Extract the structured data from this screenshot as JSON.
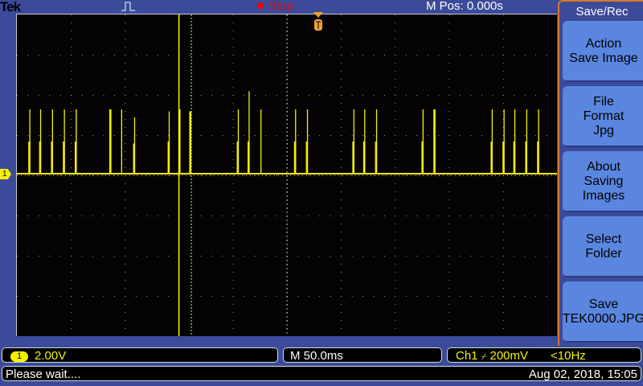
{
  "header": {
    "brand": "Tek",
    "acq_state": "Stop",
    "m_pos": "M Pos: 0.000s",
    "status_color": "#dd1111"
  },
  "side_menu": {
    "title": "Save/Rec",
    "buttons": [
      {
        "label": "Action\nSave Image"
      },
      {
        "label": "File\nFormat\nJpg"
      },
      {
        "label": "About\nSaving\nImages"
      },
      {
        "label": "Select\nFolder"
      },
      {
        "label": "Save\nTEK0000.JPG"
      }
    ]
  },
  "channel": {
    "number": "1",
    "scale": "2.00V",
    "color": "#f4f000"
  },
  "timebase": {
    "scale": "M 50.0ms"
  },
  "trigger": {
    "source": "Ch1",
    "slope": "⌿",
    "level": "200mV",
    "freq": "<10Hz"
  },
  "status": {
    "message": "Please wait....",
    "datetime": "Aug 02, 2018, 15:05"
  },
  "waveform": {
    "time_per_div_ms": 50,
    "volts_per_div": 2,
    "baseline_v": 0,
    "cursor_time_ms": -100,
    "spikes": [
      {
        "t": -238,
        "v": 3.2,
        "v2": 1.6
      },
      {
        "t": -228,
        "v": 3.2,
        "v2": 1.6
      },
      {
        "t": -217,
        "v": 3.2,
        "v2": 1.6
      },
      {
        "t": -206,
        "v": 3.2,
        "v2": 1.6
      },
      {
        "t": -195,
        "v": 3.2,
        "v2": 1.6
      },
      {
        "t": -163,
        "v": 3.2,
        "v2": 3.2
      },
      {
        "t": -153,
        "v": 3.2,
        "v2": 0
      },
      {
        "t": -141,
        "v": 2.8,
        "v2": 1.5
      },
      {
        "t": -109,
        "v": 3.1,
        "v2": 1.6
      },
      {
        "t": -99,
        "v": 3.2,
        "v2": 3.2
      },
      {
        "t": -89,
        "v": 3.1,
        "v2": 3.1
      },
      {
        "t": -45,
        "v": 3.2,
        "v2": 1.6
      },
      {
        "t": -35,
        "v": 4.1,
        "v2": 1.6
      },
      {
        "t": -24,
        "v": 3.2,
        "v2": 0
      },
      {
        "t": 8,
        "v": 3.2,
        "v2": 1.6
      },
      {
        "t": 19,
        "v": 3.2,
        "v2": 1.6
      },
      {
        "t": 62,
        "v": 3.2,
        "v2": 1.6
      },
      {
        "t": 72,
        "v": 3.2,
        "v2": 1.6
      },
      {
        "t": 83,
        "v": 3.2,
        "v2": 1.6
      },
      {
        "t": 126,
        "v": 3.2,
        "v2": 1.6
      },
      {
        "t": 137,
        "v": 3.2,
        "v2": 3.2
      },
      {
        "t": 190,
        "v": 3.2,
        "v2": 1.6
      },
      {
        "t": 201,
        "v": 3.2,
        "v2": 1.6
      },
      {
        "t": 211,
        "v": 3.2,
        "v2": 1.6
      },
      {
        "t": 222,
        "v": 3.2,
        "v2": 1.6
      },
      {
        "t": 233,
        "v": 3.2,
        "v2": 1.6
      }
    ]
  }
}
